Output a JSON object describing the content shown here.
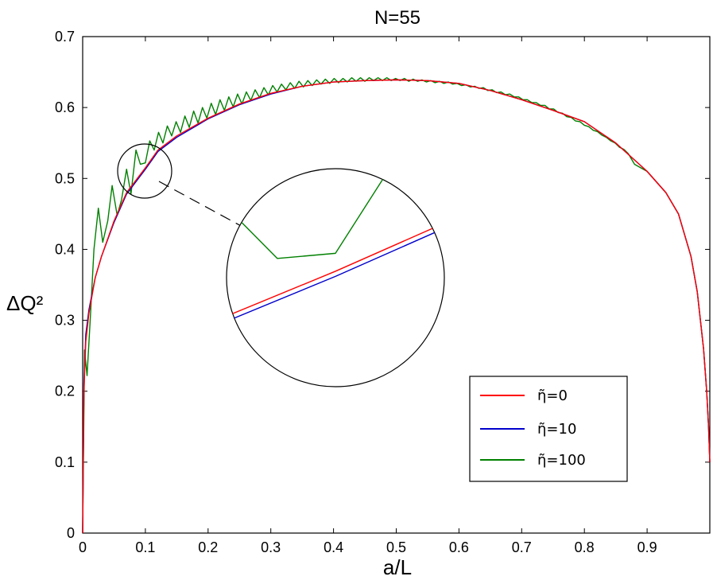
{
  "chart_data": {
    "type": "line",
    "title": "N=55",
    "xlabel": "a/L",
    "ylabel": "ΔQ²",
    "xlim": [
      0,
      1
    ],
    "ylim": [
      0,
      0.7
    ],
    "x_ticks": [
      "0",
      "0.1",
      "0.2",
      "0.3",
      "0.4",
      "0.5",
      "0.6",
      "0.7",
      "0.8",
      "0.9"
    ],
    "y_ticks": [
      "0",
      "0.1",
      "0.2",
      "0.3",
      "0.4",
      "0.5",
      "0.6",
      "0.7"
    ],
    "grid": false,
    "legend_position": "bottom-right",
    "series": [
      {
        "name": "η̃=0",
        "color": "#ff0000",
        "x": [
          0.0,
          0.002,
          0.005,
          0.01,
          0.02,
          0.03,
          0.05,
          0.07,
          0.1,
          0.12,
          0.15,
          0.2,
          0.25,
          0.3,
          0.35,
          0.4,
          0.45,
          0.5,
          0.55,
          0.6,
          0.65,
          0.7,
          0.75,
          0.8,
          0.85,
          0.9,
          0.93,
          0.95,
          0.97,
          0.98,
          0.99,
          0.995,
          0.998,
          1.0
        ],
        "y": [
          0.0,
          0.2,
          0.27,
          0.31,
          0.36,
          0.39,
          0.44,
          0.48,
          0.515,
          0.54,
          0.56,
          0.585,
          0.605,
          0.62,
          0.63,
          0.636,
          0.638,
          0.639,
          0.638,
          0.634,
          0.624,
          0.611,
          0.596,
          0.58,
          0.55,
          0.51,
          0.48,
          0.45,
          0.39,
          0.34,
          0.26,
          0.2,
          0.15,
          0.1
        ]
      },
      {
        "name": "η̃=10",
        "color": "#0000cc",
        "x": [
          0.0,
          0.002,
          0.005,
          0.01,
          0.02,
          0.03,
          0.05,
          0.07,
          0.1,
          0.12,
          0.15,
          0.2,
          0.25,
          0.3,
          0.35,
          0.4,
          0.45,
          0.5,
          0.55,
          0.6,
          0.65,
          0.7,
          0.75,
          0.8,
          0.85,
          0.9,
          0.93,
          0.95,
          0.97,
          0.98,
          0.99,
          0.995,
          0.998,
          1.0
        ],
        "y": [
          0.0,
          0.21,
          0.28,
          0.315,
          0.36,
          0.39,
          0.438,
          0.478,
          0.513,
          0.538,
          0.558,
          0.584,
          0.604,
          0.619,
          0.63,
          0.636,
          0.638,
          0.639,
          0.638,
          0.634,
          0.624,
          0.611,
          0.596,
          0.58,
          0.55,
          0.51,
          0.48,
          0.45,
          0.39,
          0.34,
          0.26,
          0.2,
          0.15,
          0.1
        ]
      },
      {
        "name": "η̃=100",
        "color": "#008000",
        "x": [
          0.0,
          0.003,
          0.007,
          0.012,
          0.018,
          0.025,
          0.032,
          0.04,
          0.047,
          0.055,
          0.062,
          0.07,
          0.077,
          0.085,
          0.092,
          0.1,
          0.107,
          0.114,
          0.121,
          0.128,
          0.135,
          0.142,
          0.149,
          0.156,
          0.163,
          0.17,
          0.177,
          0.184,
          0.191,
          0.198,
          0.205,
          0.212,
          0.219,
          0.226,
          0.233,
          0.24,
          0.247,
          0.254,
          0.261,
          0.268,
          0.275,
          0.282,
          0.289,
          0.296,
          0.303,
          0.31,
          0.317,
          0.324,
          0.331,
          0.338,
          0.345,
          0.352,
          0.359,
          0.366,
          0.373,
          0.38,
          0.387,
          0.394,
          0.401,
          0.408,
          0.415,
          0.422,
          0.429,
          0.436,
          0.443,
          0.45,
          0.457,
          0.464,
          0.471,
          0.478,
          0.485,
          0.492,
          0.499,
          0.506,
          0.513,
          0.52,
          0.527,
          0.534,
          0.541,
          0.548,
          0.555,
          0.562,
          0.569,
          0.576,
          0.583,
          0.59,
          0.597,
          0.604,
          0.611,
          0.618,
          0.625,
          0.632,
          0.639,
          0.646,
          0.653,
          0.66,
          0.667,
          0.674,
          0.681,
          0.688,
          0.695,
          0.702,
          0.709,
          0.716,
          0.723,
          0.73,
          0.737,
          0.744,
          0.751,
          0.758,
          0.765,
          0.772,
          0.779,
          0.786,
          0.793,
          0.8,
          0.807,
          0.814,
          0.821,
          0.828,
          0.835,
          0.842,
          0.849,
          0.856,
          0.863,
          0.87,
          0.88,
          0.9,
          0.93,
          0.95,
          0.97,
          0.98,
          0.99,
          0.995,
          0.998,
          1.0
        ],
        "y": [
          0.0,
          0.258,
          0.222,
          0.3,
          0.4,
          0.458,
          0.41,
          0.44,
          0.49,
          0.448,
          0.47,
          0.513,
          0.478,
          0.54,
          0.52,
          0.522,
          0.553,
          0.54,
          0.565,
          0.55,
          0.574,
          0.56,
          0.58,
          0.565,
          0.588,
          0.572,
          0.595,
          0.578,
          0.6,
          0.585,
          0.606,
          0.59,
          0.611,
          0.596,
          0.615,
          0.601,
          0.619,
          0.605,
          0.622,
          0.61,
          0.625,
          0.614,
          0.628,
          0.618,
          0.631,
          0.622,
          0.633,
          0.625,
          0.635,
          0.627,
          0.637,
          0.629,
          0.638,
          0.631,
          0.639,
          0.633,
          0.64,
          0.634,
          0.641,
          0.635,
          0.641,
          0.636,
          0.642,
          0.637,
          0.642,
          0.637,
          0.642,
          0.638,
          0.642,
          0.638,
          0.642,
          0.638,
          0.641,
          0.638,
          0.641,
          0.637,
          0.64,
          0.637,
          0.639,
          0.636,
          0.638,
          0.635,
          0.637,
          0.634,
          0.636,
          0.633,
          0.634,
          0.631,
          0.632,
          0.629,
          0.63,
          0.627,
          0.628,
          0.624,
          0.625,
          0.621,
          0.622,
          0.618,
          0.619,
          0.615,
          0.615,
          0.611,
          0.611,
          0.607,
          0.607,
          0.603,
          0.603,
          0.598,
          0.598,
          0.593,
          0.592,
          0.587,
          0.586,
          0.581,
          0.58,
          0.575,
          0.573,
          0.568,
          0.566,
          0.561,
          0.558,
          0.553,
          0.55,
          0.544,
          0.541,
          0.535,
          0.52,
          0.51,
          0.48,
          0.45,
          0.39,
          0.34,
          0.26,
          0.2,
          0.15,
          0.1
        ]
      }
    ],
    "inset": {
      "description_source": "magnified circle",
      "xlim": [
        0.085,
        0.115
      ],
      "ylim": [
        0.47,
        0.555
      ]
    }
  }
}
